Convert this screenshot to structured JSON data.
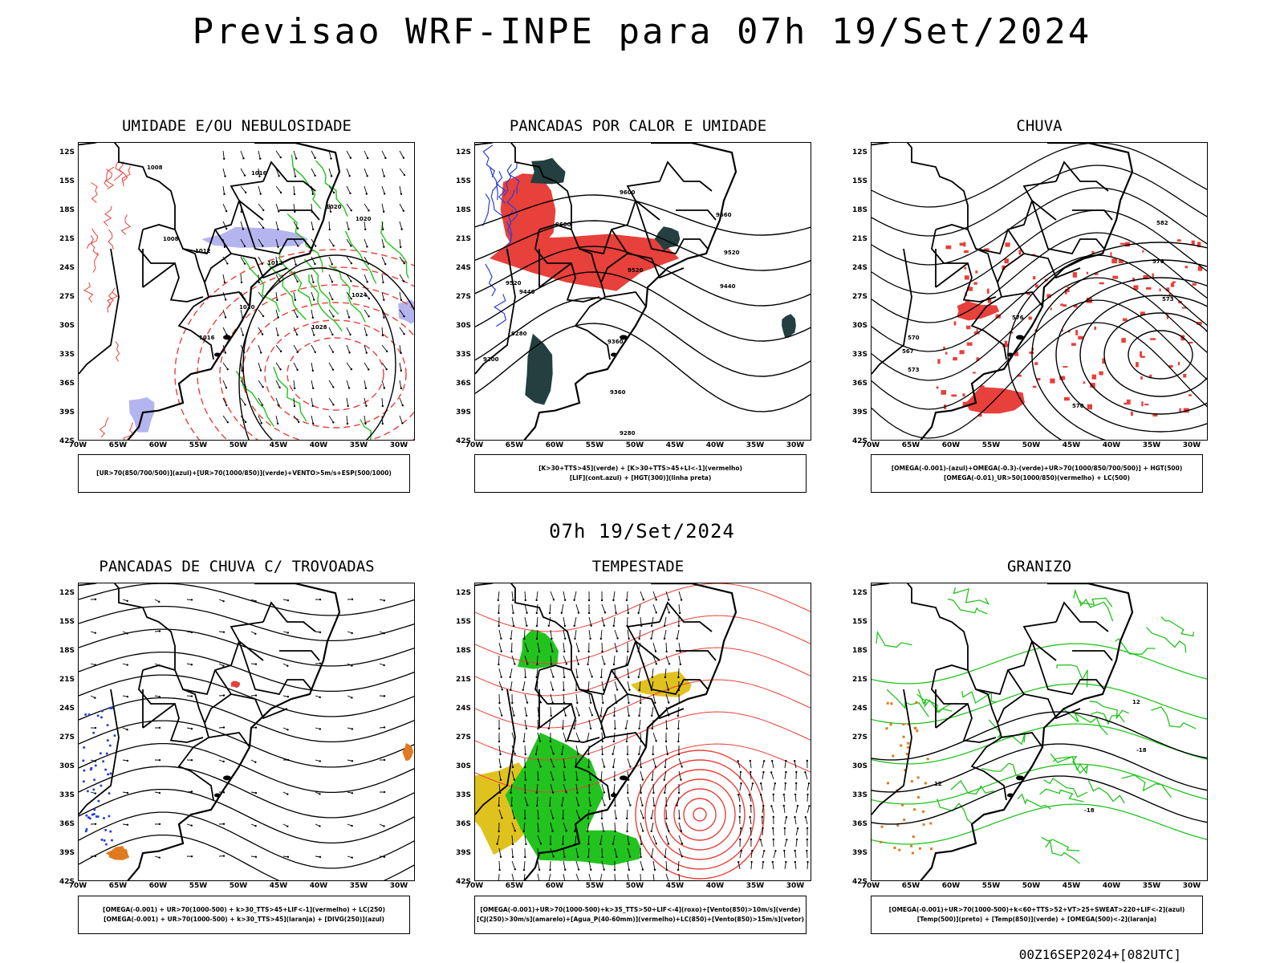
{
  "main_title": "Previsao WRF-INPE  para 07h 19/Set/2024",
  "mid_title": "07h 19/Set/2024",
  "footer": "00Z16SEP2024+[082UTC]",
  "lat_labels": [
    "12S",
    "15S",
    "18S",
    "21S",
    "24S",
    "27S",
    "30S",
    "33S",
    "36S",
    "39S",
    "42S"
  ],
  "lon_labels": [
    "70W",
    "65W",
    "60W",
    "55W",
    "50W",
    "45W",
    "40W",
    "35W",
    "30W"
  ],
  "colors": {
    "red": "#e8403a",
    "green": "#22c31e",
    "blue": "#2a3fd8",
    "lavender": "#b4b4ee",
    "darkteal": "#233f3f",
    "yellow": "#e0c21e",
    "orange": "#e07a1e"
  },
  "panels": [
    {
      "id": "p1",
      "title": "UMIDADE E/OU NEBULOSIDADE",
      "legend": [
        "[UR>70(850/700/500)](azul)+[UR>70(1000/850)](verde)+VENTO>5m/s+ESP(500/1000)"
      ],
      "contour_labels": [
        "1008",
        "1016",
        "1020",
        "1020",
        "1012",
        "1008",
        "1012",
        "1016",
        "1020",
        "1024",
        "1028"
      ]
    },
    {
      "id": "p2",
      "title": "PANCADAS POR CALOR E UMIDADE",
      "legend": [
        "[K>30+TTS>45](verde) + [K>30+TTS>45+LI<-1](vermelho)",
        "[LIF](cont.azul) + [HGT(300)](linha preta)"
      ],
      "contour_labels": [
        "9600",
        "9560",
        "9600",
        "9520",
        "9520",
        "9520",
        "9440",
        "9440",
        "9360",
        "9280",
        "9200",
        "9360",
        "9280"
      ]
    },
    {
      "id": "p3",
      "title": "CHUVA",
      "legend": [
        "[OMEGA(-0.001)-(azul)+OMEGA(-0.3)-(verde)+UR>70(1000/850/700/500)] + HGT(500)",
        "[OMEGA(-0.01)_UR>50(1000/850)(vermelho) + LC(500)"
      ],
      "contour_labels": [
        "582",
        "576",
        "573",
        "576",
        "570",
        "567",
        "573",
        "570"
      ]
    },
    {
      "id": "p4",
      "title": "PANCADAS DE CHUVA C/ TROVOADAS",
      "legend": [
        "[OMEGA(-0.001) + UR>70(1000-500) + k>30_TTS>45+LIF<-1](vermelho) + LC(250)",
        "[OMEGA(-0.001) + UR>70(1000-500) + k>30_TTS>45](laranja) + [DIVG(250)](azul)"
      ],
      "contour_labels": []
    },
    {
      "id": "p5",
      "title": "TEMPESTADE",
      "legend": [
        "[OMEGA(-0.001)+UR>70(1000-500)+k>35_TTS>50+LIF<-4](roxo)+[Vento(850)>10m/s](verde)",
        "[CJ(250)>30m/s](amarelo)+[Agua_P(40-60mm)](vermelho)+LC(850)+[Vento(850)>15m/s](vetor)"
      ],
      "contour_labels": []
    },
    {
      "id": "p6",
      "title": "GRANIZO",
      "legend": [
        "[OMEGA(-0.001)+UR>70(1000-500)+k<60+TTS>52+VT>25+SWEAT>220+LIF<-2](azul)",
        "[Temp(500)](preto) + [Temp(850)](verde) + [OMEGA(500)<-2](laranja)"
      ],
      "contour_labels": [
        "12",
        "12",
        "-18",
        "-18"
      ]
    }
  ]
}
